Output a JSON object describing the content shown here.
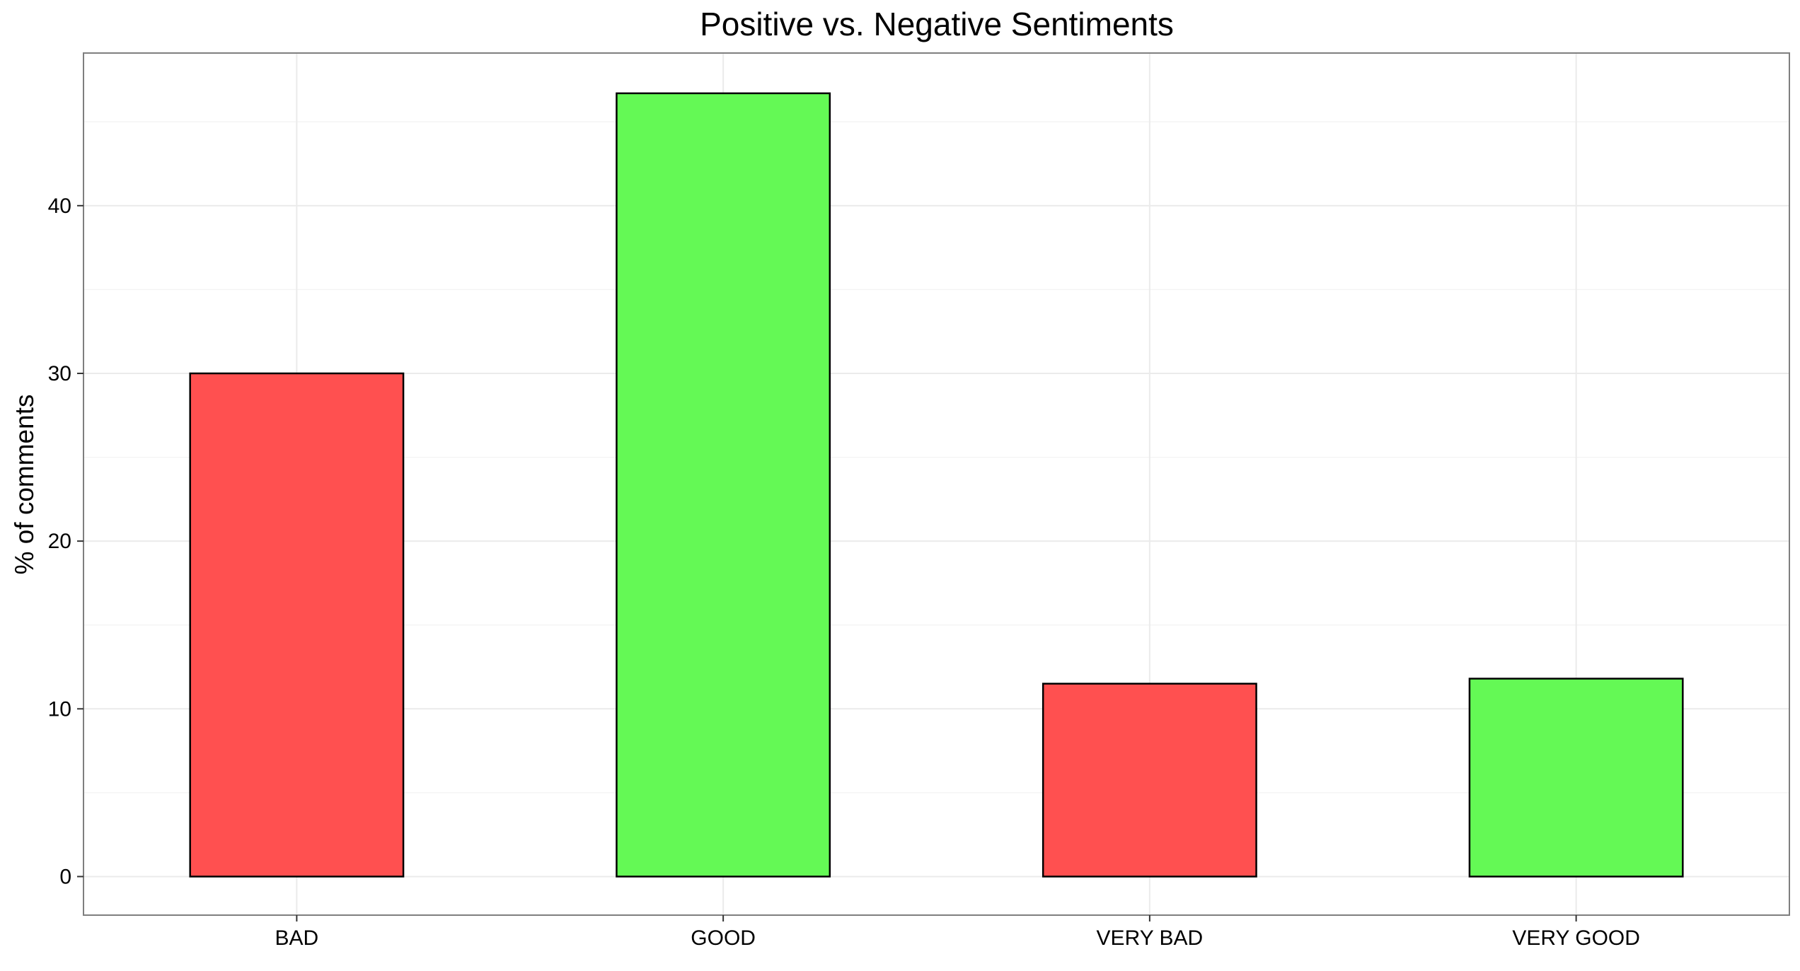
{
  "chart_data": {
    "type": "bar",
    "title": "Positive vs. Negative Sentiments",
    "xlabel": "",
    "ylabel": "% of comments",
    "categories": [
      "BAD",
      "GOOD",
      "VERY BAD",
      "VERY GOOD"
    ],
    "values": [
      30.0,
      46.7,
      11.5,
      11.8
    ],
    "bar_colors": [
      "#ff5050",
      "#64f955",
      "#ff5050",
      "#64f955"
    ],
    "bar_outline_color": "#000000",
    "y_ticks": [
      0,
      10,
      20,
      30,
      40
    ],
    "y_tick_labels": [
      "0",
      "10",
      "20",
      "30",
      "40"
    ],
    "ylim": [
      -2.3,
      49.1
    ],
    "grid": true,
    "legend": "none"
  }
}
